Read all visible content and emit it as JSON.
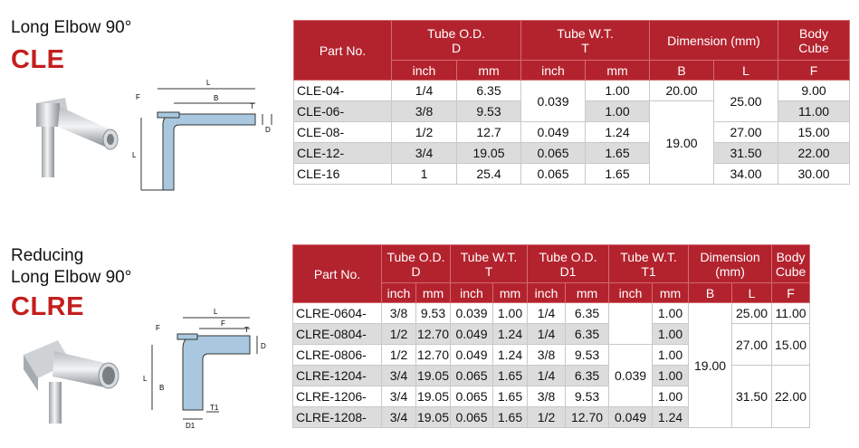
{
  "cle": {
    "title": "Long Elbow 90°",
    "code": "CLE",
    "drawing_labels": {
      "L": "L",
      "B": "B",
      "F": "F",
      "T": "T",
      "D": "D"
    },
    "headers": {
      "part_no": "Part No.",
      "tube_od": "Tube O.D.",
      "tube_od_sym": "D",
      "tube_wt": "Tube W.T.",
      "tube_wt_sym": "T",
      "dimension": "Dimension (mm)",
      "body": "Body",
      "cube": "Cube",
      "inch": "inch",
      "mm": "mm",
      "B": "B",
      "L": "L",
      "F": "F"
    },
    "rows": [
      {
        "part": "CLE-04-",
        "od_in": "1/4",
        "od_mm": "6.35",
        "wt_mm": "1.00",
        "b": "20.00",
        "f": "9.00"
      },
      {
        "part": "CLE-06-",
        "od_in": "3/8",
        "od_mm": "9.53",
        "wt_mm": "1.00",
        "f": "11.00"
      },
      {
        "part": "CLE-08-",
        "od_in": "1/2",
        "od_mm": "12.7",
        "wt_in": "0.049",
        "wt_mm": "1.24",
        "l": "27.00",
        "f": "15.00"
      },
      {
        "part": "CLE-12-",
        "od_in": "3/4",
        "od_mm": "19.05",
        "wt_in": "0.065",
        "wt_mm": "1.65",
        "l": "31.50",
        "f": "22.00"
      },
      {
        "part": "CLE-16",
        "od_in": "1",
        "od_mm": "25.4",
        "wt_in": "0.065",
        "wt_mm": "1.65",
        "l": "34.00",
        "f": "30.00"
      }
    ],
    "merged": {
      "wt_in_01": "0.039",
      "l_01": "25.00",
      "b_14": "19.00"
    }
  },
  "clre": {
    "title_line1": "Reducing",
    "title_line2": "Long Elbow 90°",
    "code": "CLRE",
    "drawing_labels": {
      "L": "L",
      "B": "B",
      "F": "F",
      "T": "T",
      "D": "D",
      "T1": "T1",
      "D1": "D1"
    },
    "headers": {
      "part_no": "Part No.",
      "tube_od": "Tube O.D.",
      "tube_od_sym": "D",
      "tube_wt": "Tube W.T.",
      "tube_wt_sym": "T",
      "tube_od1": "Tube O.D.",
      "tube_od1_sym": "D1",
      "tube_wt1": "Tube W.T.",
      "tube_wt1_sym": "T1",
      "dimension": "Dimension",
      "dimension_unit": "(mm)",
      "body": "Body",
      "cube": "Cube",
      "inch": "inch",
      "mm": "mm",
      "B": "B",
      "L": "L",
      "F": "F"
    },
    "rows": [
      {
        "part": "CLRE-0604-",
        "od_in": "3/8",
        "od_mm": "9.53",
        "wt_in": "0.039",
        "wt_mm": "1.00",
        "od1_in": "1/4",
        "od1_mm": "6.35",
        "wt1_mm": "1.00",
        "l": "25.00",
        "f": "11.00"
      },
      {
        "part": "CLRE-0804-",
        "od_in": "1/2",
        "od_mm": "12.70",
        "wt_in": "0.049",
        "wt_mm": "1.24",
        "od1_in": "1/4",
        "od1_mm": "6.35",
        "wt1_mm": "1.00"
      },
      {
        "part": "CLRE-0806-",
        "od_in": "1/2",
        "od_mm": "12.70",
        "wt_in": "0.049",
        "wt_mm": "1.24",
        "od1_in": "3/8",
        "od1_mm": "9.53",
        "wt1_in": "0.039",
        "wt1_mm": "1.00"
      },
      {
        "part": "CLRE-1204-",
        "od_in": "3/4",
        "od_mm": "19.05",
        "wt_in": "0.065",
        "wt_mm": "1.65",
        "od1_in": "1/4",
        "od1_mm": "6.35",
        "wt1_mm": "1.00"
      },
      {
        "part": "CLRE-1206-",
        "od_in": "3/4",
        "od_mm": "19.05",
        "wt_in": "0.065",
        "wt_mm": "1.65",
        "od1_in": "3/8",
        "od1_mm": "9.53",
        "wt1_mm": "1.00"
      },
      {
        "part": "CLRE-1208-",
        "od_in": "3/4",
        "od_mm": "19.05",
        "wt_in": "0.065",
        "wt_mm": "1.65",
        "od1_in": "1/2",
        "od1_mm": "12.70",
        "wt1_in": "0.049",
        "wt1_mm": "1.24"
      }
    ],
    "merged": {
      "b_05": "19.00",
      "lf_12_l": "27.00",
      "lf_12_f": "15.00",
      "lf_35_l": "31.50",
      "lf_35_f": "22.00"
    }
  }
}
